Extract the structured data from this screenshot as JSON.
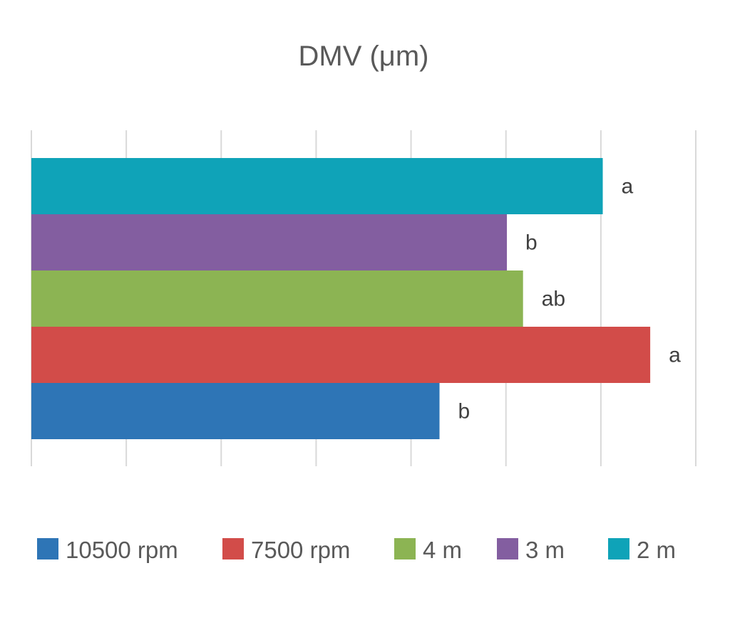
{
  "chart_data": {
    "type": "bar",
    "orientation": "horizontal",
    "title": "DMV (μm)",
    "xlabel": "",
    "ylabel": "",
    "xlim": [
      0,
      7
    ],
    "grid": true,
    "legend_position": "bottom",
    "series": [
      {
        "name": "10500 rpm",
        "value": 4.3,
        "label": "b",
        "color": "#2e75b6"
      },
      {
        "name": "7500 rpm",
        "value": 6.52,
        "label": "a",
        "color": "#d24c49"
      },
      {
        "name": "4 m",
        "value": 5.18,
        "label": "ab",
        "color": "#8cb453"
      },
      {
        "name": "3 m",
        "value": 5.01,
        "label": "b",
        "color": "#835ea0"
      },
      {
        "name": "2 m",
        "value": 6.02,
        "label": "a",
        "color": "#0fa3b8"
      }
    ]
  }
}
